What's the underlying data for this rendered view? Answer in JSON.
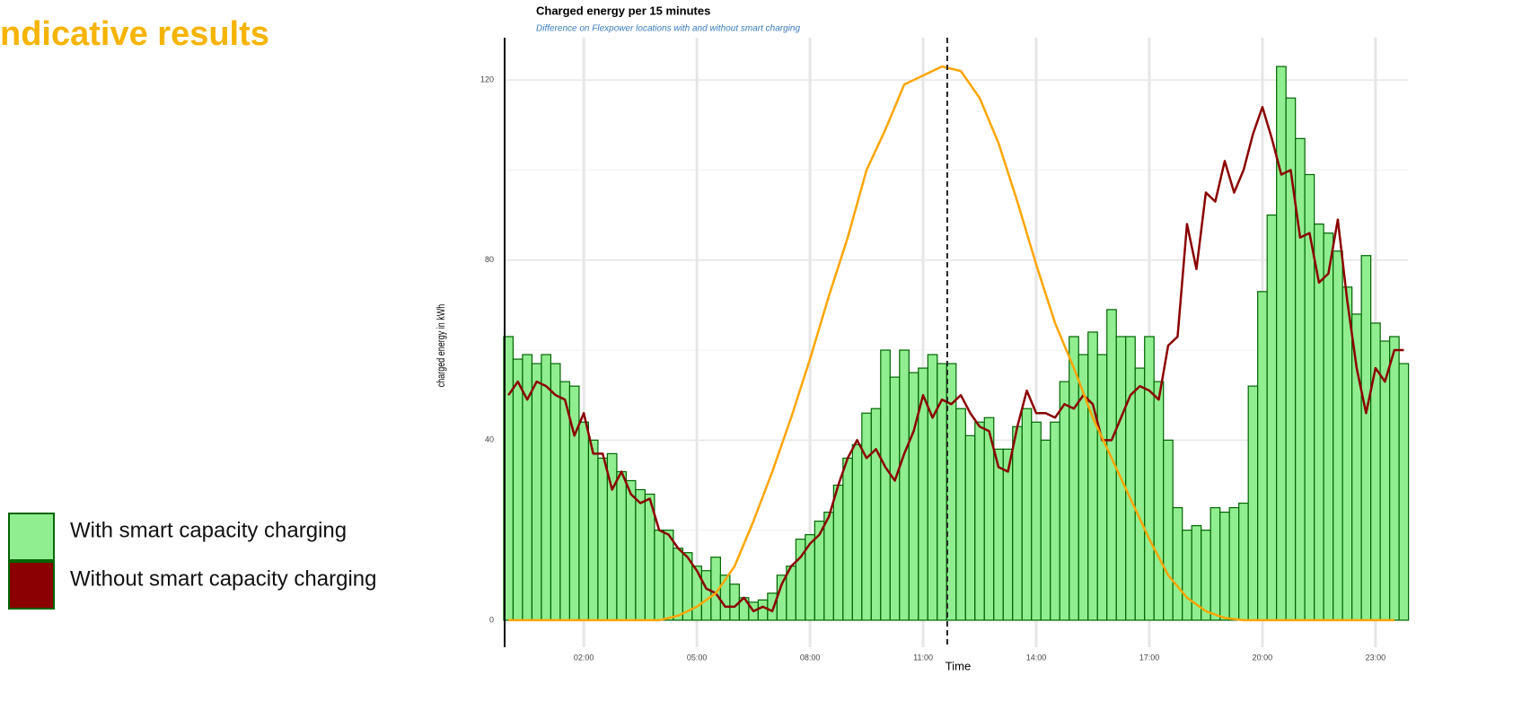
{
  "heading": "ndicative results",
  "chart_data": {
    "type": "bar",
    "title": "Charged energy per 15 minutes",
    "subtitle": "Difference on Flexpower locations with and without smart charging",
    "x_label": "Time",
    "y_label": "charged energy in kWh",
    "x": [
      0,
      0.25,
      0.5,
      0.75,
      1,
      1.25,
      1.5,
      1.75,
      2,
      2.25,
      2.5,
      2.75,
      3,
      3.25,
      3.5,
      3.75,
      4,
      4.25,
      4.5,
      4.75,
      5,
      5.25,
      5.5,
      5.75,
      6,
      6.25,
      6.5,
      6.75,
      7,
      7.25,
      7.5,
      7.75,
      8,
      8.25,
      8.5,
      8.75,
      9,
      9.25,
      9.5,
      9.75,
      10,
      10.25,
      10.5,
      10.75,
      11,
      11.25,
      11.5,
      11.75,
      12,
      12.25,
      12.5,
      12.75,
      13,
      13.25,
      13.5,
      13.75,
      14,
      14.25,
      14.5,
      14.75,
      15,
      15.25,
      15.5,
      15.75,
      16,
      16.25,
      16.5,
      16.75,
      17,
      17.25,
      17.5,
      17.75,
      18,
      18.25,
      18.5,
      18.75,
      19,
      19.25,
      19.5,
      19.75,
      20,
      20.25,
      20.5,
      20.75,
      21,
      21.25,
      21.5,
      21.75,
      22,
      22.25,
      22.5,
      22.75,
      23,
      23.25,
      23.5,
      23.75
    ],
    "series": [
      {
        "name": "With smart capacity charging",
        "kind": "bar",
        "color": "#90ee90",
        "stroke": "#006400",
        "values": [
          63,
          58,
          59,
          57,
          59,
          57,
          53,
          52,
          44,
          40,
          36,
          37,
          33,
          31,
          29,
          28,
          20,
          20,
          16,
          15,
          12,
          11,
          14,
          10,
          8,
          5,
          4,
          4.5,
          6,
          10,
          12,
          18,
          19,
          22,
          24,
          30,
          36,
          39,
          46,
          47,
          60,
          54,
          60,
          55,
          56,
          59,
          57,
          57,
          47,
          41,
          44,
          45,
          38,
          38,
          43,
          47,
          44,
          40,
          44,
          53,
          63,
          59,
          64,
          59,
          69,
          63,
          63,
          56,
          63,
          53,
          40,
          25,
          20,
          21,
          20,
          25,
          24,
          25,
          26,
          52,
          73,
          90,
          123,
          116,
          107,
          99,
          88,
          86,
          82,
          74,
          68,
          81,
          66,
          62,
          63,
          57
        ]
      },
      {
        "name": "Without smart capacity charging",
        "kind": "line",
        "color": "#8b0000",
        "values": [
          50,
          53,
          49,
          53,
          52,
          50,
          49,
          41,
          46,
          37,
          37,
          29,
          33,
          28,
          26,
          27,
          20,
          19,
          16,
          14,
          11,
          7,
          6,
          3,
          3,
          5,
          2,
          3,
          2,
          8,
          12,
          14,
          17,
          19,
          23,
          30,
          36,
          40,
          36,
          38,
          34,
          31,
          37,
          42,
          50,
          45,
          49,
          48,
          50,
          46,
          43,
          42,
          34,
          33,
          43,
          51,
          46,
          46,
          45,
          48,
          47,
          50,
          48,
          40,
          40,
          45,
          50,
          52,
          51,
          49,
          61,
          63,
          88,
          78,
          95,
          93,
          102,
          95,
          100,
          108,
          114,
          107,
          99,
          100,
          85,
          86,
          75,
          77,
          89,
          71,
          56,
          46,
          56,
          53,
          60,
          60
        ]
      },
      {
        "kind": "line",
        "color": "#ffa500",
        "x": [
          0,
          0.5,
          1,
          1.5,
          2,
          2.5,
          3,
          3.5,
          4,
          4.5,
          5,
          5.5,
          6,
          6.5,
          7,
          7.5,
          8,
          8.5,
          9,
          9.5,
          10,
          10.5,
          11,
          11.5,
          12,
          12.5,
          13,
          13.5,
          14,
          14.5,
          15,
          15.5,
          16,
          16.5,
          17,
          17.5,
          18,
          18.5,
          19,
          19.5,
          20,
          20.5,
          21,
          21.5,
          22,
          22.5,
          23,
          23.5
        ],
        "values": [
          0,
          0,
          0,
          0,
          0,
          0,
          0,
          0,
          0,
          1,
          3,
          6,
          12,
          22,
          33,
          45,
          58,
          72,
          85,
          100,
          109,
          119,
          121,
          123,
          122,
          116,
          106,
          93,
          79,
          66,
          56,
          45,
          36,
          27,
          18,
          10,
          5,
          2,
          0.5,
          0,
          0,
          0,
          0,
          0,
          0,
          0,
          0,
          0
        ]
      }
    ],
    "reference_line_x": 11.64,
    "xlim": [
      -0.1,
      23.86
    ],
    "xticks": [
      {
        "value": 2,
        "label": "02:00"
      },
      {
        "value": 5,
        "label": "05:00"
      },
      {
        "value": 8,
        "label": "08:00"
      },
      {
        "value": 11,
        "label": "11:00"
      },
      {
        "value": 14,
        "label": "14:00"
      },
      {
        "value": 17,
        "label": "17:00"
      },
      {
        "value": 20,
        "label": "20:00"
      },
      {
        "value": 23,
        "label": "23:00"
      }
    ],
    "ylim": [
      -6,
      129.4
    ],
    "yticks": [
      0,
      40,
      80,
      120
    ],
    "minor_yticks": [
      20,
      60,
      100
    ],
    "grid": true
  }
}
